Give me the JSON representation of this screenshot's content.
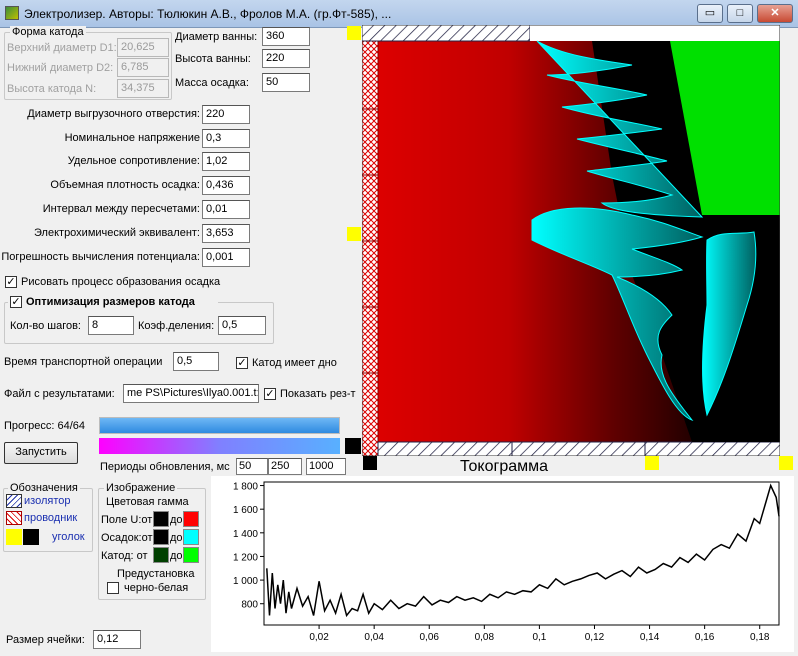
{
  "window": {
    "title": "Электролизер. Авторы: Тюлюкин А.В., Фролов М.А. (гр.Фт-585), ...",
    "minimize": "▭",
    "maximize": "□",
    "close": "✕"
  },
  "cathode_shape": {
    "title": "Форма катода",
    "d1_label": "Верхний диаметр D1:",
    "d1_value": "20,625",
    "d2_label": "Нижний диаметр D2:",
    "d2_value": "6,785",
    "h_label": "Высота катода N:",
    "h_value": "34,375"
  },
  "bath": {
    "diameter_label": "Диаметр ванны:",
    "diameter_value": "360",
    "height_label": "Высота ванны:",
    "height_value": "220",
    "mass_label": "Масса осадка:",
    "mass_value": "50"
  },
  "params": [
    {
      "label": "Диаметр выгрузочного отверстия:",
      "value": "220"
    },
    {
      "label": "Номинальное напряжение",
      "value": "0,3"
    },
    {
      "label": "Удельное сопротивление:",
      "value": "1,02"
    },
    {
      "label": "Объемная плотность осадка:",
      "value": "0,436"
    },
    {
      "label": "Интервал между пересчетами:",
      "value": "0,01"
    },
    {
      "label": "Электрохимический эквивалент:",
      "value": "3,653"
    },
    {
      "label": "Погрешность вычисления потенциала:",
      "value": "0,001"
    }
  ],
  "draw_process": {
    "label": "Рисовать процесс образования осадка",
    "checked": "✓"
  },
  "optimization": {
    "label": "Оптимизация размеров катода",
    "checked": "✓",
    "steps_label": "Кол-во шагов:",
    "steps_value": "8",
    "coef_label": "Коэф.деления:",
    "coef_value": "0,5"
  },
  "transport": {
    "label": "Время транспортной операции",
    "value": "0,5",
    "bottom_label": "Катод имеет дно",
    "bottom_checked": "✓"
  },
  "results": {
    "label": "Файл с результатами:",
    "value": "me PS\\Pictures\\Ilya0.001.t:",
    "show_label": "Показать рез-т",
    "show_checked": "✓"
  },
  "progress": {
    "label": "Прогресс: 64/64",
    "fraction": 1.0
  },
  "run_button": "Запустить",
  "refresh": {
    "label": "Периоды обновления, мс",
    "v1": "50",
    "v2": "250",
    "v3": "1000"
  },
  "legend": {
    "title": "Обозначения",
    "insulator": "изолятор",
    "conductor": "проводник",
    "corner": "уголок"
  },
  "image_group": {
    "title": "Изображение",
    "palette_title": "Цветовая гамма",
    "rows": [
      {
        "label": "Поле U:от",
        "to": "до",
        "from_color": "#000000",
        "to_color": "#ff0000"
      },
      {
        "label": "Осадок:от",
        "to": "до",
        "from_color": "#000000",
        "to_color": "#00ffff"
      },
      {
        "label": "Катод:  от",
        "to": "до",
        "from_color": "#004000",
        "to_color": "#00ff00"
      }
    ],
    "preset_label": "Предустановка",
    "bw_label": "черно-белая"
  },
  "cell_size": {
    "label": "Размер ячейки:",
    "value": "0,12"
  },
  "chart_title": "Токограмма",
  "colors": {
    "field": "#e00000",
    "deposit": "#00ffff",
    "cathode": "#00e000",
    "accent": "#ffff00",
    "progress": "#2f94e8"
  },
  "chart_data": {
    "type": "line",
    "title": "Токограмма",
    "xlim": [
      0,
      0.187
    ],
    "ylim": [
      620,
      1830
    ],
    "x_ticks": [
      "0,02",
      "0,04",
      "0,06",
      "0,08",
      "0,1",
      "0,12",
      "0,14",
      "0,16",
      "0,18"
    ],
    "y_ticks": [
      "1 800",
      "1 600",
      "1 400",
      "1 200",
      "1 000",
      "800"
    ],
    "x_tick_values": [
      0.02,
      0.04,
      0.06,
      0.08,
      0.1,
      0.12,
      0.14,
      0.16,
      0.18
    ],
    "y_tick_values": [
      1800,
      1600,
      1400,
      1200,
      1000,
      800
    ],
    "series": [
      {
        "x": [
          0.001,
          0.002,
          0.003,
          0.004,
          0.005,
          0.006,
          0.007,
          0.008,
          0.009,
          0.01,
          0.012,
          0.014,
          0.016,
          0.018,
          0.02,
          0.022,
          0.024,
          0.026,
          0.028,
          0.03,
          0.032,
          0.034,
          0.036,
          0.038,
          0.04,
          0.043,
          0.046,
          0.049,
          0.052,
          0.055,
          0.058,
          0.061,
          0.064,
          0.067,
          0.07,
          0.073,
          0.076,
          0.079,
          0.082,
          0.085,
          0.088,
          0.091,
          0.094,
          0.097,
          0.1,
          0.103,
          0.106,
          0.109,
          0.112,
          0.115,
          0.118,
          0.121,
          0.124,
          0.127,
          0.13,
          0.133,
          0.136,
          0.139,
          0.142,
          0.145,
          0.148,
          0.151,
          0.154,
          0.157,
          0.16,
          0.163,
          0.166,
          0.169,
          0.172,
          0.175,
          0.178,
          0.18,
          0.182,
          0.184,
          0.186,
          0.187
        ],
        "y": [
          1100,
          700,
          1060,
          760,
          960,
          800,
          1000,
          720,
          900,
          760,
          930,
          780,
          860,
          700,
          990,
          740,
          830,
          720,
          880,
          700,
          760,
          740,
          880,
          720,
          800,
          750,
          830,
          760,
          800,
          780,
          860,
          790,
          830,
          810,
          860,
          830,
          850,
          820,
          880,
          850,
          900,
          880,
          910,
          900,
          960,
          930,
          1010,
          960,
          990,
          1010,
          1040,
          1060,
          1010,
          1050,
          1080,
          1030,
          1110,
          1060,
          1090,
          1140,
          1110,
          1190,
          1150,
          1220,
          1170,
          1260,
          1300,
          1270,
          1390,
          1330,
          1520,
          1480,
          1640,
          1800,
          1700,
          1540
        ]
      }
    ]
  }
}
